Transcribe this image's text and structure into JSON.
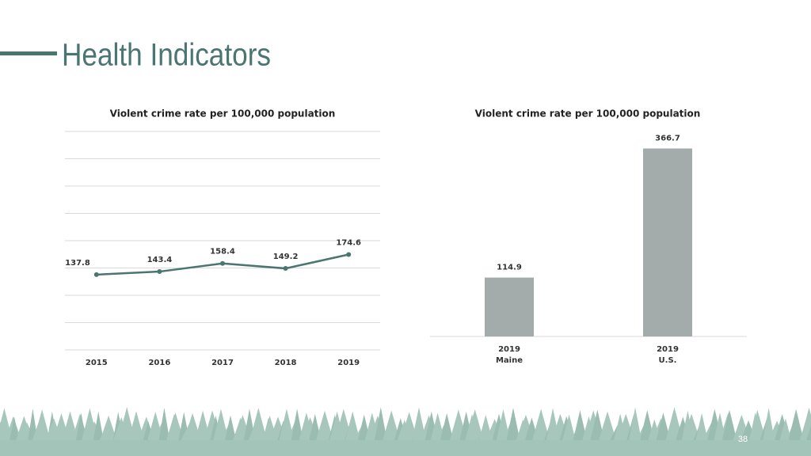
{
  "header": {
    "title": "Health Indicators",
    "page_number": "38"
  },
  "chart_data": [
    {
      "type": "line",
      "title": "Violent crime rate per 100,000 population",
      "categories": [
        "2015",
        "2016",
        "2017",
        "2018",
        "2019"
      ],
      "series": [
        {
          "color": "#4a7571",
          "values": [
            137.8,
            143.4,
            158.4,
            149.2,
            174.6
          ]
        }
      ],
      "ylim": [
        0,
        400
      ],
      "yticks": [
        0,
        50,
        100,
        150,
        200,
        250,
        300,
        350,
        400
      ],
      "grid": true
    },
    {
      "type": "bar",
      "title": "Violent crime rate per 100,000 population",
      "categories": [
        [
          "2019",
          "Maine"
        ],
        [
          "2019",
          "U.S."
        ]
      ],
      "values": [
        114.9,
        366.7
      ],
      "color": "#a3abab",
      "ylim": [
        0,
        400
      ],
      "grid": false
    }
  ]
}
